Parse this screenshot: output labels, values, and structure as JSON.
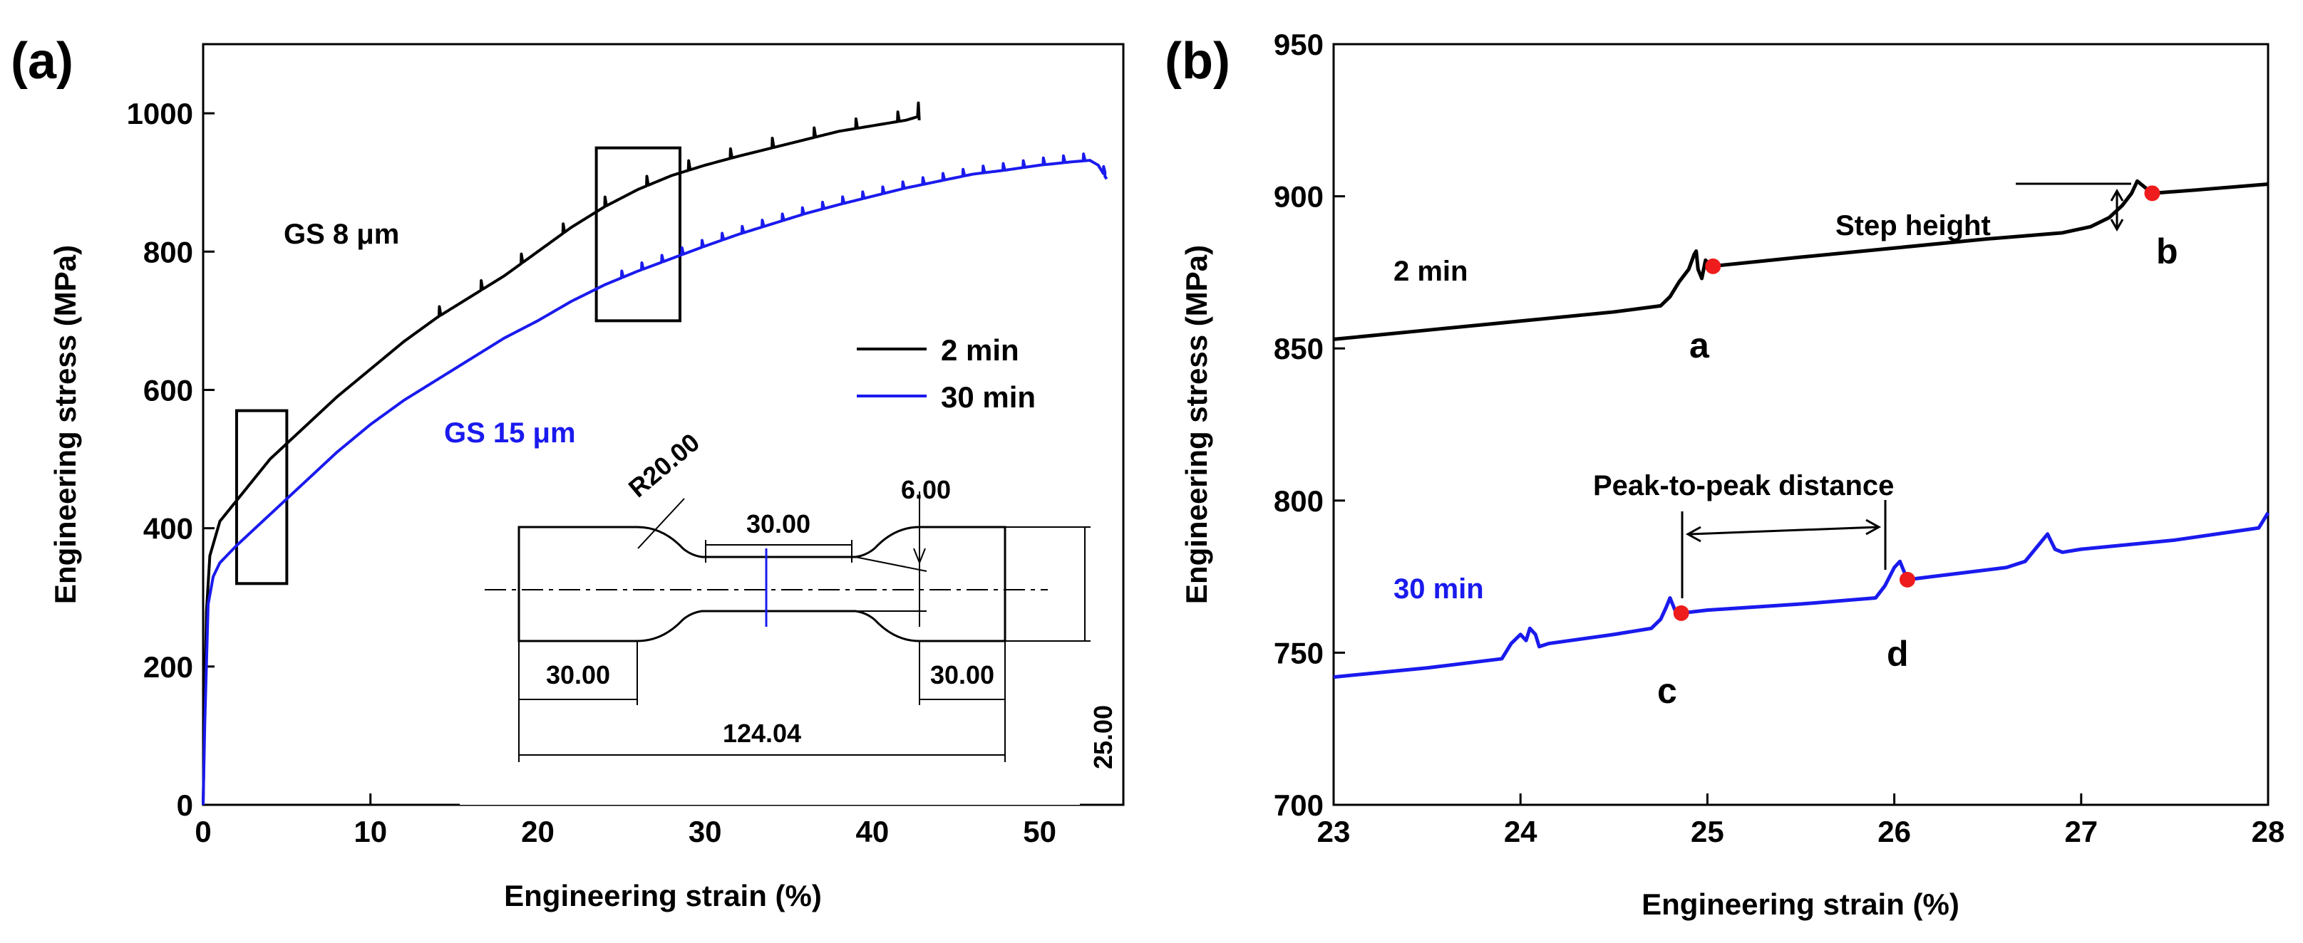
{
  "chart_data": [
    {
      "panel_label": "(a)",
      "type": "line",
      "xlabel": "Engineering strain (%)",
      "ylabel": "Engineering stress (MPa)",
      "xlim": [
        0,
        55
      ],
      "ylim": [
        0,
        1100
      ],
      "xticks": [
        0,
        10,
        20,
        30,
        40,
        50
      ],
      "yticks": [
        0,
        200,
        400,
        600,
        800,
        1000
      ],
      "grid": false,
      "legend": {
        "position": "center-right",
        "entries": [
          {
            "label": "2 min",
            "color": "#000000"
          },
          {
            "label": "30 min",
            "color": "#1a1aee"
          }
        ]
      },
      "annotations": {
        "gs8": "GS 8 μm",
        "gs15": "GS 15 μm"
      },
      "highlight_boxes": [
        {
          "x": [
            2,
            5
          ],
          "y": [
            320,
            570
          ]
        },
        {
          "x": [
            23.5,
            28.5
          ],
          "y": [
            700,
            950
          ]
        }
      ],
      "series": [
        {
          "name": "2 min",
          "color": "#000000",
          "points": [
            [
              0,
              0
            ],
            [
              0.1,
              150
            ],
            [
              0.2,
              280
            ],
            [
              0.4,
              360
            ],
            [
              1,
              410
            ],
            [
              2,
              440
            ],
            [
              3,
              470
            ],
            [
              4,
              500
            ],
            [
              6,
              545
            ],
            [
              8,
              590
            ],
            [
              10,
              630
            ],
            [
              12,
              670
            ],
            [
              14,
              705
            ],
            [
              16,
              735
            ],
            [
              18,
              765
            ],
            [
              20,
              800
            ],
            [
              22,
              835
            ],
            [
              24,
              865
            ],
            [
              26,
              890
            ],
            [
              28,
              910
            ],
            [
              30,
              925
            ],
            [
              32,
              938
            ],
            [
              34,
              950
            ],
            [
              36,
              962
            ],
            [
              38,
              974
            ],
            [
              40,
              982
            ],
            [
              42,
              990
            ],
            [
              42.7,
              995
            ]
          ],
          "serration_start": 14,
          "serration_step": 2.5,
          "serration_amp": 14,
          "end_spike": [
            [
              42.7,
              995
            ],
            [
              42.75,
              1015
            ],
            [
              42.8,
              990
            ]
          ]
        },
        {
          "name": "30 min",
          "color": "#1a1aee",
          "points": [
            [
              0,
              0
            ],
            [
              0.1,
              120
            ],
            [
              0.3,
              290
            ],
            [
              0.6,
              330
            ],
            [
              1,
              350
            ],
            [
              2,
              375
            ],
            [
              4,
              420
            ],
            [
              6,
              465
            ],
            [
              8,
              510
            ],
            [
              10,
              550
            ],
            [
              12,
              585
            ],
            [
              14,
              615
            ],
            [
              16,
              645
            ],
            [
              18,
              675
            ],
            [
              20,
              700
            ],
            [
              22,
              728
            ],
            [
              24,
              752
            ],
            [
              26,
              772
            ],
            [
              28,
              790
            ],
            [
              30,
              808
            ],
            [
              32,
              825
            ],
            [
              34,
              840
            ],
            [
              36,
              855
            ],
            [
              38,
              868
            ],
            [
              40,
              880
            ],
            [
              42,
              892
            ],
            [
              44,
              902
            ],
            [
              46,
              912
            ],
            [
              48,
              918
            ],
            [
              50,
              925
            ],
            [
              52,
              930
            ],
            [
              53,
              932
            ],
            [
              53.5,
              925
            ],
            [
              54,
              905
            ]
          ],
          "serration_start": 25,
          "serration_step": 1.2,
          "serration_amp": 10
        }
      ],
      "inset": {
        "r": "R20.00",
        "gauge": "30.00",
        "width": "6.00",
        "left": "30.00",
        "right": "30.00",
        "total": "124.04",
        "height": "25.00"
      }
    },
    {
      "panel_label": "(b)",
      "type": "line",
      "xlabel": "Engineering strain (%)",
      "ylabel": "Engineering stress (MPa)",
      "xlim": [
        23,
        28
      ],
      "ylim": [
        700,
        950
      ],
      "xticks": [
        23,
        24,
        25,
        26,
        27,
        28
      ],
      "yticks": [
        700,
        750,
        800,
        850,
        900,
        950
      ],
      "grid": false,
      "annotations": {
        "curve_2min": "2 min",
        "curve_30min": "30 min",
        "step_height": "Step height",
        "peak_to_peak": "Peak-to-peak distance",
        "a": "a",
        "b": "b",
        "c": "c",
        "d": "d"
      },
      "marked_points": [
        {
          "label": "a",
          "x": 25.03,
          "y": 877
        },
        {
          "label": "b",
          "x": 27.38,
          "y": 901
        },
        {
          "label": "c",
          "x": 24.86,
          "y": 763
        },
        {
          "label": "d",
          "x": 26.07,
          "y": 774
        }
      ],
      "series": [
        {
          "name": "2 min",
          "color": "#000000",
          "points": [
            [
              23,
              853
            ],
            [
              23.5,
              856
            ],
            [
              24,
              859
            ],
            [
              24.5,
              862
            ],
            [
              24.75,
              864
            ],
            [
              24.8,
              867
            ],
            [
              24.85,
              872
            ],
            [
              24.9,
              876
            ],
            [
              24.93,
              881
            ],
            [
              24.94,
              882
            ],
            [
              24.95,
              876
            ],
            [
              24.97,
              873
            ],
            [
              24.99,
              879
            ],
            [
              25.02,
              877
            ],
            [
              25.5,
              880
            ],
            [
              26,
              883
            ],
            [
              26.5,
              886
            ],
            [
              26.9,
              888
            ],
            [
              27.05,
              890
            ],
            [
              27.15,
              893
            ],
            [
              27.22,
              897
            ],
            [
              27.27,
              901
            ],
            [
              27.3,
              905
            ],
            [
              27.32,
              904
            ],
            [
              27.38,
              901
            ],
            [
              27.6,
              902
            ],
            [
              28,
              904
            ]
          ]
        },
        {
          "name": "30 min",
          "color": "#1a1aee",
          "points": [
            [
              23,
              742
            ],
            [
              23.5,
              745
            ],
            [
              23.9,
              748
            ],
            [
              23.95,
              753
            ],
            [
              24,
              756
            ],
            [
              24.03,
              754
            ],
            [
              24.05,
              758
            ],
            [
              24.08,
              756
            ],
            [
              24.1,
              752
            ],
            [
              24.15,
              753
            ],
            [
              24.5,
              756
            ],
            [
              24.7,
              758
            ],
            [
              24.75,
              761
            ],
            [
              24.78,
              765
            ],
            [
              24.8,
              768
            ],
            [
              24.82,
              765
            ],
            [
              24.84,
              762
            ],
            [
              24.86,
              763
            ],
            [
              25,
              764
            ],
            [
              25.5,
              766
            ],
            [
              25.9,
              768
            ],
            [
              25.95,
              772
            ],
            [
              26,
              778
            ],
            [
              26.03,
              780
            ],
            [
              26.05,
              777
            ],
            [
              26.07,
              774
            ],
            [
              26.2,
              775
            ],
            [
              26.6,
              778
            ],
            [
              26.7,
              780
            ],
            [
              26.78,
              786
            ],
            [
              26.82,
              789
            ],
            [
              26.86,
              784
            ],
            [
              26.9,
              783
            ],
            [
              27,
              784
            ],
            [
              27.5,
              787
            ],
            [
              27.95,
              791
            ],
            [
              28,
              796
            ]
          ]
        }
      ]
    }
  ]
}
